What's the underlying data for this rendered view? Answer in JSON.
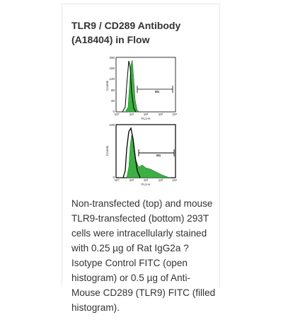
{
  "card": {
    "title": "TLR9 / CD289 Antibody (A18404) in Flow",
    "figures": [
      {
        "yticks": [
          "200",
          "160",
          "120",
          "80",
          "40",
          "0"
        ],
        "ylabel": "Counts",
        "xticks": [
          "10⁰",
          "10¹",
          "10²",
          "10³",
          "10⁴"
        ],
        "xlabel": "FL1-H",
        "marker": "M1"
      },
      {
        "yticks": [
          "100",
          "0"
        ],
        "ylabel": "Counts",
        "xticks": [
          "10⁰",
          "10¹",
          "10²",
          "10³",
          "10⁴"
        ],
        "xlabel": "FL1-H",
        "marker": "M1"
      }
    ],
    "description": "Non-transfected (top) and mouse TLR9-transfected (bottom) 293T cells were intracellularly stained with 0.25 µg of Rat IgG2a ? Isotype Control FITC (open histogram) or 0.5 µg of Anti-Mouse CD289 (TLR9) FITC (filled histogram)."
  }
}
